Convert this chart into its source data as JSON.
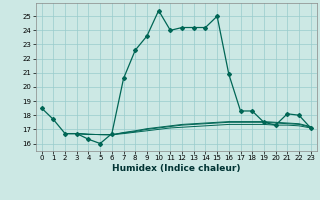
{
  "xlabel": "Humidex (Indice chaleur)",
  "background_color": "#cce8e4",
  "grid_color": "#99cccc",
  "line_color": "#006655",
  "xlim": [
    -0.5,
    23.5
  ],
  "ylim": [
    15.5,
    25.9
  ],
  "yticks": [
    16,
    17,
    18,
    19,
    20,
    21,
    22,
    23,
    24,
    25
  ],
  "xticks": [
    0,
    1,
    2,
    3,
    4,
    5,
    6,
    7,
    8,
    9,
    10,
    11,
    12,
    13,
    14,
    15,
    16,
    17,
    18,
    19,
    20,
    21,
    22,
    23
  ],
  "main_series": {
    "x": [
      0,
      1,
      2,
      3,
      4,
      5,
      6,
      7,
      8,
      9,
      10,
      11,
      12,
      13,
      14,
      15,
      16,
      17,
      18,
      19,
      20,
      21,
      22,
      23
    ],
    "y": [
      18.5,
      17.7,
      16.7,
      16.7,
      16.3,
      16.0,
      16.7,
      20.6,
      22.6,
      23.6,
      25.4,
      24.0,
      24.2,
      24.2,
      24.2,
      25.0,
      20.9,
      18.3,
      18.3,
      17.5,
      17.3,
      18.1,
      18.0,
      17.1
    ]
  },
  "flat_lines": [
    {
      "x": [
        2,
        3,
        4,
        5,
        6,
        7,
        8,
        9,
        10,
        11,
        12,
        13,
        14,
        15,
        16,
        17,
        18,
        19,
        20,
        21,
        22,
        23
      ],
      "y": [
        16.7,
        16.7,
        16.65,
        16.63,
        16.62,
        16.7,
        16.8,
        16.9,
        17.0,
        17.1,
        17.15,
        17.2,
        17.25,
        17.3,
        17.35,
        17.35,
        17.35,
        17.35,
        17.3,
        17.3,
        17.25,
        17.1
      ]
    },
    {
      "x": [
        2,
        3,
        4,
        5,
        6,
        7,
        8,
        9,
        10,
        11,
        12,
        13,
        14,
        15,
        16,
        17,
        18,
        19,
        20,
        21,
        22,
        23
      ],
      "y": [
        16.7,
        16.7,
        16.65,
        16.63,
        16.62,
        16.75,
        16.85,
        17.0,
        17.1,
        17.2,
        17.3,
        17.35,
        17.4,
        17.45,
        17.5,
        17.5,
        17.5,
        17.5,
        17.45,
        17.4,
        17.35,
        17.15
      ]
    },
    {
      "x": [
        2,
        3,
        4,
        5,
        6,
        7,
        8,
        9,
        10,
        11,
        12,
        13,
        14,
        15,
        16,
        17,
        18,
        19,
        20,
        21,
        22,
        23
      ],
      "y": [
        16.7,
        16.7,
        16.65,
        16.63,
        16.62,
        16.78,
        16.9,
        17.05,
        17.15,
        17.25,
        17.35,
        17.4,
        17.45,
        17.5,
        17.55,
        17.55,
        17.55,
        17.55,
        17.5,
        17.45,
        17.4,
        17.2
      ]
    }
  ]
}
